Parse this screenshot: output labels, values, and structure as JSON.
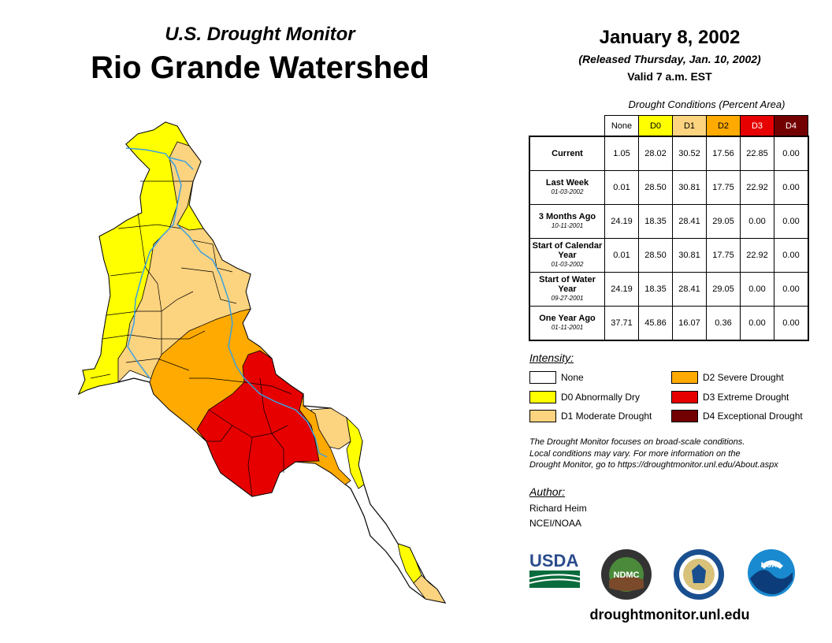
{
  "header": {
    "subtitle": "U.S. Drought Monitor",
    "title": "Rio Grande Watershed",
    "date": "January 8, 2002",
    "released": "(Released Thursday, Jan. 10, 2002)",
    "valid": "Valid 7 a.m. EST"
  },
  "table": {
    "title": "Drought Conditions (Percent Area)",
    "columns": [
      "None",
      "D0",
      "D1",
      "D2",
      "D3",
      "D4"
    ],
    "rows": [
      {
        "label": "Current",
        "date": "",
        "values": [
          "1.05",
          "28.02",
          "30.52",
          "17.56",
          "22.85",
          "0.00"
        ]
      },
      {
        "label": "Last Week",
        "date": "01-03-2002",
        "values": [
          "0.01",
          "28.50",
          "30.81",
          "17.75",
          "22.92",
          "0.00"
        ]
      },
      {
        "label": "3 Months Ago",
        "date": "10-11-2001",
        "values": [
          "24.19",
          "18.35",
          "28.41",
          "29.05",
          "0.00",
          "0.00"
        ]
      },
      {
        "label": "Start of Calendar Year",
        "date": "01-03-2002",
        "values": [
          "0.01",
          "28.50",
          "30.81",
          "17.75",
          "22.92",
          "0.00"
        ]
      },
      {
        "label": "Start of Water Year",
        "date": "09-27-2001",
        "values": [
          "24.19",
          "18.35",
          "28.41",
          "29.05",
          "0.00",
          "0.00"
        ]
      },
      {
        "label": "One Year Ago",
        "date": "01-11-2001",
        "values": [
          "37.71",
          "45.86",
          "16.07",
          "0.36",
          "0.00",
          "0.00"
        ]
      }
    ]
  },
  "legend": {
    "title": "Intensity:",
    "items": [
      {
        "label": "None",
        "color": "#ffffff"
      },
      {
        "label": "D0 Abnormally Dry",
        "color": "#ffff00"
      },
      {
        "label": "D1 Moderate Drought",
        "color": "#fcd37f"
      },
      {
        "label": "D2 Severe Drought",
        "color": "#ffaa00"
      },
      {
        "label": "D3 Extreme Drought",
        "color": "#e60000"
      },
      {
        "label": "D4 Exceptional Drought",
        "color": "#730000"
      }
    ]
  },
  "note": {
    "line1": "The Drought Monitor focuses on broad-scale conditions.",
    "line2": "Local conditions may vary. For more information on the",
    "line3": "Drought Monitor, go to https://droughtmonitor.unl.edu/About.aspx"
  },
  "author": {
    "label": "Author:",
    "name": "Richard Heim",
    "org": "NCEI/NOAA"
  },
  "logos": {
    "usda": "USDA",
    "ndmc": "NDMC",
    "noaa": "NOAA"
  },
  "website": "droughtmonitor.unl.edu",
  "colors": {
    "none": "#ffffff",
    "d0": "#ffff00",
    "d1": "#fcd37f",
    "d2": "#ffaa00",
    "d3": "#e60000",
    "d4": "#730000",
    "river": "#3aa0e0"
  }
}
